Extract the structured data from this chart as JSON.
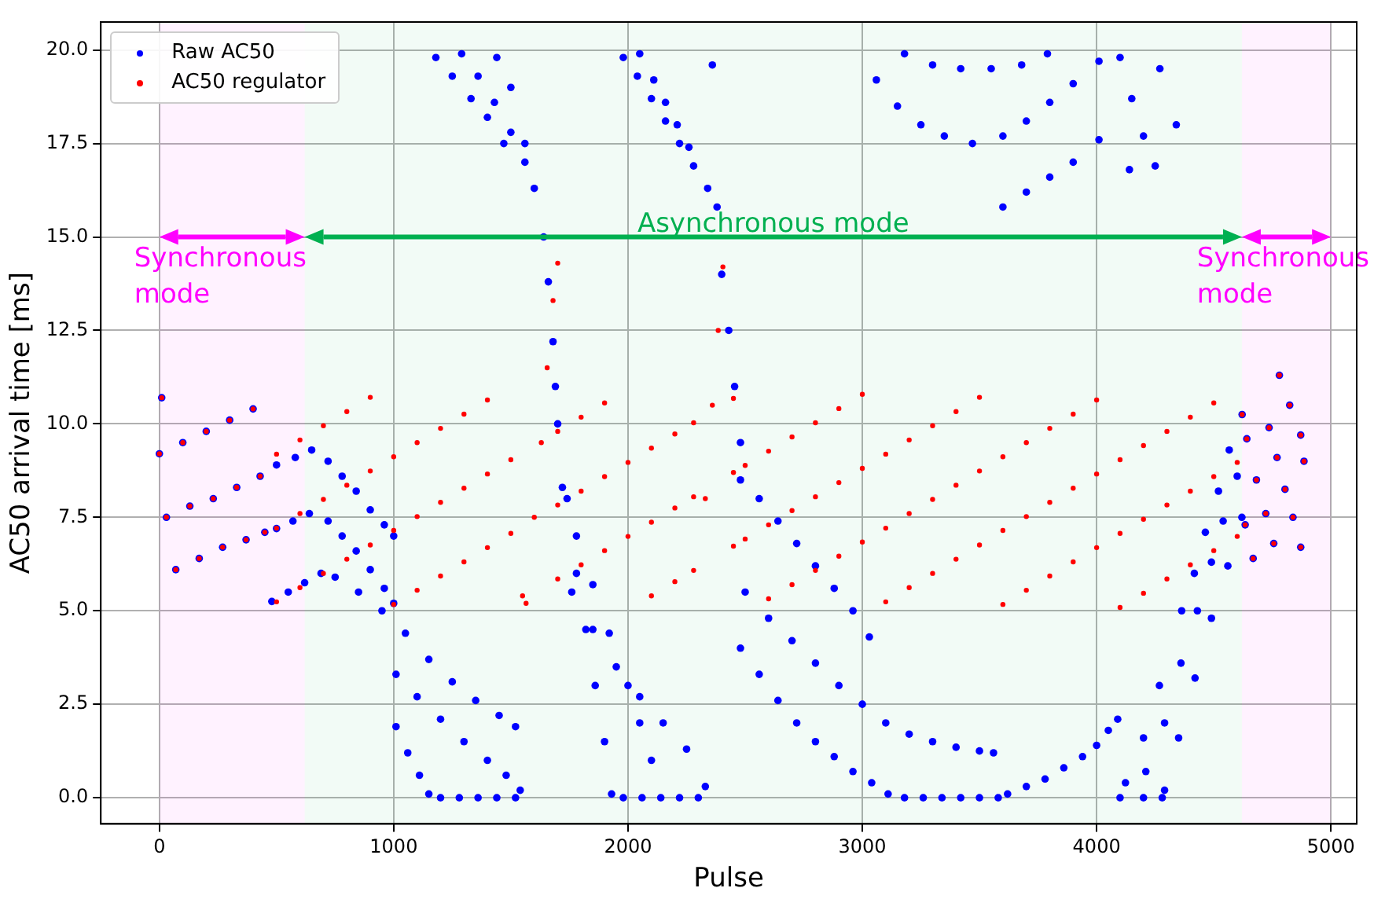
{
  "chart_data": {
    "type": "scatter",
    "xlabel": "Pulse",
    "ylabel": "AC50 arrival time [ms]",
    "xlim": [
      -250,
      5110
    ],
    "xticks": [
      0,
      1000,
      2000,
      3000,
      4000,
      5000
    ],
    "ylim": [
      -0.7,
      20.75
    ],
    "yticks": [
      {
        "value": 0,
        "label": "0.0"
      },
      2.5,
      {
        "value": 5,
        "label": "5.0"
      },
      7.5,
      {
        "value": 10,
        "label": "10.0"
      },
      12.5,
      {
        "value": 15,
        "label": "15.0"
      },
      17.5,
      {
        "value": 20,
        "label": "20.0"
      }
    ],
    "grid": true,
    "legend": "top left",
    "marker": "circle",
    "bands": [
      {
        "axis": "x",
        "from": 0,
        "to": 620,
        "label": "Synchronous mode",
        "color": "#ff00ff"
      },
      {
        "axis": "x",
        "from": 620,
        "to": 4620,
        "label": "Asynchronous mode",
        "color": "#00b050"
      },
      {
        "axis": "x",
        "from": 4620,
        "to": 5000,
        "label": "Synchronous mode",
        "color": "#ff00ff"
      }
    ],
    "series": [
      {
        "name": "Raw AC50",
        "color": "#0000ff",
        "x": [
          10,
          0,
          100,
          200,
          300,
          400,
          30,
          130,
          230,
          330,
          430,
          70,
          170,
          270,
          370,
          450,
          500,
          580,
          650,
          500,
          570,
          640,
          480,
          550,
          620,
          690,
          720,
          780,
          840,
          900,
          960,
          1000,
          720,
          780,
          840,
          900,
          960,
          1000,
          750,
          850,
          950,
          1050,
          1150,
          1250,
          1350,
          1450,
          1520,
          1010,
          1100,
          1200,
          1300,
          1400,
          1480,
          1540,
          1010,
          1060,
          1110,
          1150,
          1200,
          1280,
          1360,
          1440,
          1520,
          1180,
          1250,
          1330,
          1400,
          1470,
          1290,
          1360,
          1430,
          1500,
          1560,
          1440,
          1500,
          1560,
          1600,
          1640,
          1660,
          1680,
          1690,
          1700,
          1740,
          1780,
          1820,
          1860,
          1900,
          1930,
          1720,
          1780,
          1850,
          1920,
          2000,
          2050,
          2100,
          1760,
          1850,
          1950,
          2050,
          2150,
          2250,
          2330,
          1980,
          2060,
          2140,
          2220,
          2300,
          1980,
          2040,
          2100,
          2160,
          2220,
          2280,
          2340,
          2380,
          2050,
          2110,
          2160,
          2210,
          2260,
          2360,
          2400,
          2430,
          2455,
          2480,
          2480,
          2560,
          2640,
          2720,
          2800,
          2880,
          2960,
          3030,
          2500,
          2600,
          2700,
          2800,
          2900,
          3000,
          3100,
          3200,
          3300,
          3400,
          3500,
          3560,
          2480,
          2560,
          2640,
          2720,
          2800,
          2880,
          2960,
          3040,
          3110,
          3180,
          3260,
          3340,
          3420,
          3500,
          3580,
          3620,
          3700,
          3780,
          3860,
          3940,
          4000,
          4050,
          4090,
          4100,
          4200,
          4280,
          3060,
          3150,
          3250,
          3350,
          3470,
          3600,
          3700,
          3800,
          3900,
          4010,
          3180,
          3300,
          3420,
          3550,
          3680,
          3790,
          3600,
          3700,
          3800,
          3900,
          4010,
          4100,
          4270,
          4150,
          4340,
          4250,
          4140,
          4200,
          4123,
          4200,
          4268,
          4363,
          4417,
          4464,
          4520,
          4566,
          4210,
          4290,
          4360,
          4430,
          4490,
          4540,
          4600,
          4290,
          4350,
          4420,
          4490,
          4560,
          4620,
          4780,
          4621,
          4824,
          4736,
          4871,
          4641,
          4770,
          4885,
          4682,
          4804,
          4634,
          4838,
          4722,
          4756,
          4871,
          4668
        ],
        "values": [
          10.7,
          9.2,
          9.5,
          9.8,
          10.1,
          10.4,
          7.5,
          7.8,
          8.0,
          8.3,
          8.6,
          6.1,
          6.4,
          6.7,
          6.9,
          7.1,
          8.9,
          9.1,
          9.3,
          7.2,
          7.4,
          7.6,
          5.25,
          5.5,
          5.75,
          6.0,
          9.0,
          8.6,
          8.2,
          7.7,
          7.3,
          7.0,
          7.4,
          7.0,
          6.6,
          6.1,
          5.6,
          5.2,
          5.9,
          5.5,
          5.0,
          4.4,
          3.7,
          3.1,
          2.6,
          2.2,
          1.9,
          3.3,
          2.7,
          2.1,
          1.5,
          1.0,
          0.6,
          0.2,
          1.9,
          1.2,
          0.6,
          0.1,
          0,
          0,
          0,
          0,
          0,
          19.8,
          19.3,
          18.7,
          18.2,
          17.5,
          19.9,
          19.3,
          18.6,
          17.8,
          17.0,
          19.8,
          19.0,
          17.5,
          16.3,
          15.0,
          13.8,
          12.2,
          11.0,
          10.0,
          8.0,
          6.0,
          4.5,
          3.0,
          1.5,
          0.1,
          8.3,
          7.0,
          5.7,
          4.4,
          3.0,
          2.0,
          1.0,
          5.5,
          4.5,
          3.5,
          2.7,
          2.0,
          1.3,
          0.3,
          0,
          0,
          0,
          0,
          0,
          19.8,
          19.3,
          18.7,
          18.1,
          17.5,
          16.9,
          16.3,
          15.8,
          19.9,
          19.2,
          18.6,
          18.0,
          17.4,
          19.6,
          14.0,
          12.5,
          11.0,
          9.5,
          8.5,
          8.0,
          7.4,
          6.8,
          6.2,
          5.6,
          5.0,
          4.3,
          5.5,
          4.8,
          4.2,
          3.6,
          3.0,
          2.5,
          2.0,
          1.7,
          1.5,
          1.35,
          1.25,
          1.2,
          4.0,
          3.3,
          2.6,
          2.0,
          1.5,
          1.1,
          0.7,
          0.4,
          0.1,
          0,
          0,
          0,
          0,
          0,
          0,
          0.1,
          0.3,
          0.5,
          0.8,
          1.1,
          1.4,
          1.8,
          2.1,
          0,
          0,
          0,
          19.2,
          18.5,
          18.0,
          17.7,
          17.5,
          17.7,
          18.1,
          18.6,
          19.1,
          19.7,
          19.9,
          19.6,
          19.5,
          19.5,
          19.6,
          19.9,
          15.8,
          16.2,
          16.6,
          17.0,
          17.6,
          19.8,
          19.5,
          18.7,
          18.0,
          16.9,
          16.8,
          17.7,
          0.4,
          1.6,
          3.0,
          5.0,
          6.0,
          7.1,
          8.2,
          9.3,
          0.7,
          2.0,
          3.6,
          5.0,
          6.3,
          7.4,
          8.6,
          0.2,
          1.6,
          3.2,
          4.8,
          6.2,
          7.5,
          11.3,
          10.25,
          10.5,
          9.9,
          9.7,
          9.6,
          9.1,
          9.0,
          8.5,
          8.25,
          7.3,
          7.5,
          7.6,
          6.8,
          6.7,
          6.4
        ]
      },
      {
        "name": "AC50 regulator",
        "color": "#ff0000",
        "x": [
          10,
          0,
          100,
          200,
          300,
          400,
          30,
          130,
          230,
          330,
          430,
          70,
          170,
          270,
          370,
          450,
          500,
          500,
          500,
          600,
          600,
          600,
          700,
          700,
          700,
          800,
          800,
          800,
          900,
          900,
          900,
          1000,
          1000,
          1000,
          1100,
          1100,
          1100,
          1200,
          1200,
          1200,
          1300,
          1300,
          1300,
          1400,
          1400,
          1400,
          1500,
          1500,
          1550,
          1565,
          1600,
          1630,
          1655,
          1680,
          1700,
          1700,
          1700,
          1700,
          1800,
          1800,
          1800,
          1900,
          1900,
          1900,
          2000,
          2000,
          2100,
          2100,
          2100,
          2200,
          2200,
          2200,
          2280,
          2280,
          2280,
          2330,
          2360,
          2385,
          2405,
          2450,
          2450,
          2450,
          2500,
          2500,
          2600,
          2600,
          2600,
          2700,
          2700,
          2700,
          2800,
          2800,
          2800,
          2900,
          2900,
          2900,
          3000,
          3000,
          3000,
          3100,
          3100,
          3100,
          3200,
          3200,
          3200,
          3300,
          3300,
          3300,
          3400,
          3400,
          3400,
          3500,
          3500,
          3500,
          3600,
          3600,
          3600,
          3700,
          3700,
          3700,
          3800,
          3800,
          3800,
          3900,
          3900,
          3900,
          4000,
          4000,
          4000,
          4100,
          4100,
          4100,
          4200,
          4200,
          4200,
          4300,
          4300,
          4300,
          4400,
          4400,
          4400,
          4500,
          4500,
          4500,
          4600,
          4600,
          4780,
          4621,
          4824,
          4736,
          4871,
          4641,
          4770,
          4885,
          4682,
          4804,
          4634,
          4838,
          4722,
          4756,
          4871,
          4668
        ],
        "values": [
          10.7,
          9.2,
          9.5,
          9.8,
          10.1,
          10.4,
          7.5,
          7.8,
          8.0,
          8.3,
          8.6,
          6.1,
          6.4,
          6.7,
          6.9,
          7.1,
          5.24,
          7.21,
          9.19,
          5.62,
          7.6,
          9.57,
          6.0,
          7.98,
          9.95,
          6.38,
          8.36,
          10.33,
          6.76,
          8.74,
          10.71,
          5.17,
          7.15,
          9.12,
          5.55,
          7.52,
          9.5,
          5.93,
          7.9,
          9.88,
          6.31,
          8.28,
          10.26,
          6.69,
          8.66,
          10.64,
          7.07,
          9.04,
          5.4,
          5.2,
          7.5,
          9.5,
          11.5,
          13.3,
          14.3,
          5.85,
          7.83,
          9.8,
          6.23,
          8.2,
          10.18,
          6.61,
          8.59,
          10.56,
          6.99,
          8.97,
          5.4,
          7.37,
          9.35,
          5.78,
          7.75,
          9.73,
          6.08,
          8.05,
          10.03,
          8.0,
          10.5,
          12.5,
          14.2,
          6.73,
          8.7,
          10.68,
          6.92,
          8.89,
          5.32,
          7.3,
          9.27,
          5.7,
          7.68,
          9.65,
          6.08,
          8.05,
          10.03,
          6.46,
          8.43,
          10.41,
          6.84,
          8.81,
          10.79,
          5.24,
          7.21,
          9.19,
          5.62,
          7.6,
          9.57,
          6.0,
          7.98,
          9.95,
          6.38,
          8.36,
          10.33,
          6.76,
          8.74,
          10.71,
          5.17,
          7.15,
          9.12,
          5.55,
          7.52,
          9.5,
          5.93,
          7.9,
          9.88,
          6.31,
          8.28,
          10.26,
          6.69,
          8.66,
          10.64,
          5.09,
          7.07,
          9.04,
          5.47,
          7.45,
          9.42,
          5.85,
          7.83,
          9.8,
          6.23,
          8.2,
          10.18,
          6.61,
          8.59,
          10.56,
          6.99,
          8.97,
          11.3,
          10.25,
          10.5,
          9.9,
          9.7,
          9.6,
          9.1,
          9.0,
          8.5,
          8.25,
          7.3,
          7.5,
          7.6,
          6.8,
          6.7,
          6.4
        ]
      }
    ]
  }
}
